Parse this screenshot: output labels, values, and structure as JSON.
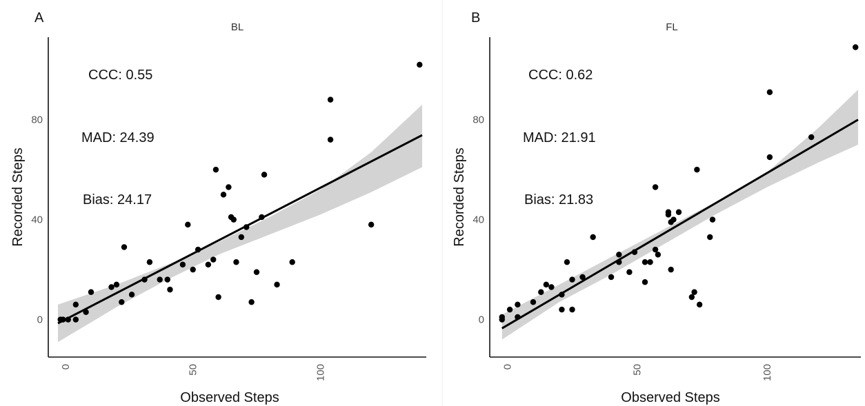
{
  "chart_data": [
    {
      "type": "scatter",
      "panel_letter": "A",
      "title": "BL",
      "xlabel": "Observed Steps",
      "ylabel": "Recorded Steps",
      "xlim": [
        -3,
        140
      ],
      "ylim": [
        -15,
        113
      ],
      "xticks": [
        0,
        50,
        100
      ],
      "yticks": [
        0,
        40,
        80
      ],
      "annotations": [
        "CCC: 0.55",
        "MAD: 24.39",
        "Bias: 24.17"
      ],
      "fit_line": {
        "x": [
          -3,
          140
        ],
        "y": [
          -1.5,
          73.8
        ]
      },
      "confidence_band": {
        "x": [
          -3,
          20,
          40,
          60,
          80,
          100,
          120,
          140
        ],
        "lower": [
          -9,
          5,
          16,
          26,
          34,
          42,
          51,
          61
        ],
        "upper": [
          6,
          14,
          22,
          31,
          41,
          52,
          67,
          86
        ]
      },
      "points": [
        [
          -2,
          0
        ],
        [
          -1,
          0
        ],
        [
          1,
          0
        ],
        [
          4,
          6
        ],
        [
          4,
          0
        ],
        [
          8,
          3
        ],
        [
          10,
          11
        ],
        [
          18,
          13
        ],
        [
          20,
          14
        ],
        [
          22,
          7
        ],
        [
          23,
          29
        ],
        [
          26,
          10
        ],
        [
          31,
          16
        ],
        [
          33,
          23
        ],
        [
          37,
          16
        ],
        [
          40,
          16
        ],
        [
          41,
          12
        ],
        [
          46,
          22
        ],
        [
          48,
          38
        ],
        [
          50,
          20
        ],
        [
          52,
          28
        ],
        [
          56,
          22
        ],
        [
          58,
          24
        ],
        [
          59,
          60
        ],
        [
          60,
          9
        ],
        [
          62,
          50
        ],
        [
          64,
          53
        ],
        [
          65,
          41
        ],
        [
          66,
          40
        ],
        [
          67,
          23
        ],
        [
          69,
          33
        ],
        [
          71,
          37
        ],
        [
          73,
          7
        ],
        [
          75,
          19
        ],
        [
          77,
          41
        ],
        [
          78,
          58
        ],
        [
          83,
          14
        ],
        [
          89,
          23
        ],
        [
          104,
          88
        ],
        [
          104,
          72
        ],
        [
          120,
          38
        ],
        [
          139,
          102
        ]
      ]
    },
    {
      "type": "scatter",
      "panel_letter": "B",
      "title": "FL",
      "xlabel": "Observed Steps",
      "ylabel": "Recorded Steps",
      "xlim": [
        -3,
        135
      ],
      "ylim": [
        -15,
        113
      ],
      "xticks": [
        0,
        50,
        100
      ],
      "yticks": [
        0,
        40,
        80
      ],
      "annotations": [
        "CCC: 0.62",
        "MAD: 21.91",
        "Bias: 21.83"
      ],
      "fit_line": {
        "x": [
          -2,
          135
        ],
        "y": [
          -3.5,
          80
        ]
      },
      "confidence_band": {
        "x": [
          -2,
          20,
          40,
          60,
          80,
          100,
          120,
          135
        ],
        "lower": [
          -8,
          7,
          18,
          30,
          42,
          53,
          63,
          70
        ],
        "upper": [
          2,
          14,
          25,
          36,
          47,
          59,
          77,
          92
        ]
      },
      "points": [
        [
          -2,
          0
        ],
        [
          -2,
          1
        ],
        [
          1,
          4
        ],
        [
          4,
          1
        ],
        [
          4,
          6
        ],
        [
          10,
          7
        ],
        [
          13,
          11
        ],
        [
          15,
          14
        ],
        [
          17,
          13
        ],
        [
          21,
          10
        ],
        [
          21,
          4
        ],
        [
          23,
          23
        ],
        [
          25,
          16
        ],
        [
          25,
          4
        ],
        [
          29,
          17
        ],
        [
          33,
          33
        ],
        [
          40,
          17
        ],
        [
          43,
          23
        ],
        [
          43,
          26
        ],
        [
          47,
          19
        ],
        [
          49,
          27
        ],
        [
          53,
          15
        ],
        [
          53,
          23
        ],
        [
          55,
          23
        ],
        [
          57,
          53
        ],
        [
          57,
          28
        ],
        [
          58,
          26
        ],
        [
          62,
          43
        ],
        [
          62,
          42
        ],
        [
          63,
          39
        ],
        [
          63,
          20
        ],
        [
          64,
          40
        ],
        [
          66,
          43
        ],
        [
          71,
          9
        ],
        [
          72,
          11
        ],
        [
          73,
          60
        ],
        [
          74,
          6
        ],
        [
          78,
          33
        ],
        [
          79,
          40
        ],
        [
          101,
          91
        ],
        [
          101,
          65
        ],
        [
          117,
          73
        ],
        [
          134,
          109
        ]
      ]
    }
  ]
}
